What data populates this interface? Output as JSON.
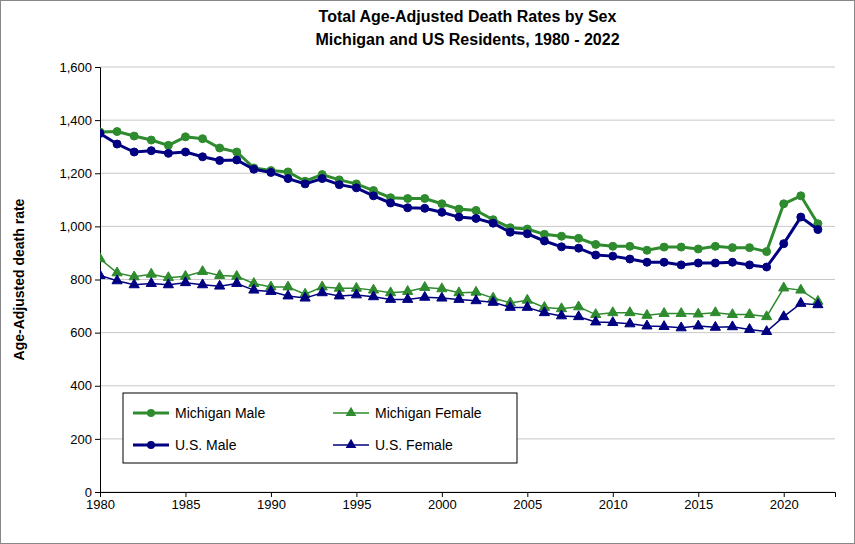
{
  "chart_data": {
    "type": "line",
    "title": "Total Age-Adjusted Death Rates by Sex",
    "subtitle": "Michigan and US Residents, 1980 - 2022",
    "y_label": "Age-Adjusted death rate",
    "x": [
      1980,
      1981,
      1982,
      1983,
      1984,
      1985,
      1986,
      1987,
      1988,
      1989,
      1990,
      1991,
      1992,
      1993,
      1994,
      1995,
      1996,
      1997,
      1998,
      1999,
      2000,
      2001,
      2002,
      2003,
      2004,
      2005,
      2006,
      2007,
      2008,
      2009,
      2010,
      2011,
      2012,
      2013,
      2014,
      2015,
      2016,
      2017,
      2018,
      2019,
      2020,
      2021,
      2022
    ],
    "xlim": [
      1980,
      2023
    ],
    "xticks": [
      1980,
      1985,
      1990,
      1995,
      2000,
      2005,
      2010,
      2015,
      2020
    ],
    "ylim": [
      0,
      1600
    ],
    "yticks": [
      0,
      200,
      400,
      600,
      800,
      {
        "value": 1000,
        "label": "1,000"
      },
      {
        "value": 1200,
        "label": "1,200"
      },
      {
        "value": 1400,
        "label": "1,400"
      },
      {
        "value": 1600,
        "label": "1,600"
      }
    ],
    "grid": true,
    "legend": "lower left",
    "series": [
      {
        "name": "Michigan Male",
        "color": "#2e8b2e",
        "marker": "circle",
        "line_style": "solid",
        "values": [
          1355,
          1357,
          1340,
          1325,
          1305,
          1337,
          1330,
          1295,
          1280,
          1220,
          1210,
          1205,
          1170,
          1195,
          1175,
          1160,
          1135,
          1108,
          1105,
          1105,
          1085,
          1065,
          1060,
          1025,
          995,
          990,
          970,
          963,
          955,
          932,
          925,
          925,
          910,
          922,
          922,
          915,
          925,
          920,
          920,
          905,
          1085,
          1115,
          1010
        ]
      },
      {
        "name": "Michigan Female",
        "color": "#2e8b2e",
        "marker": "triangle",
        "line_style": "solid",
        "values": [
          878,
          825,
          810,
          820,
          807,
          812,
          830,
          815,
          812,
          785,
          772,
          772,
          745,
          772,
          767,
          767,
          760,
          750,
          755,
          770,
          765,
          750,
          752,
          730,
          712,
          722,
          695,
          690,
          697,
          668,
          675,
          675,
          665,
          672,
          672,
          670,
          675,
          668,
          668,
          660,
          768,
          760,
          718
        ]
      },
      {
        "name": "U.S. Male",
        "color": "#000080",
        "marker": "circle",
        "line_style": "solid",
        "values": [
          1350,
          1310,
          1280,
          1285,
          1275,
          1280,
          1262,
          1248,
          1250,
          1215,
          1203,
          1180,
          1160,
          1180,
          1157,
          1145,
          1115,
          1088,
          1070,
          1068,
          1053,
          1035,
          1030,
          1012,
          978,
          972,
          945,
          923,
          918,
          892,
          888,
          877,
          865,
          865,
          855,
          862,
          862,
          865,
          855,
          847,
          935,
          1035,
          988
        ]
      },
      {
        "name": "U.S. Female",
        "color": "#000080",
        "marker": "triangle",
        "line_style": "solid",
        "values": [
          815,
          795,
          780,
          785,
          780,
          788,
          780,
          775,
          785,
          760,
          755,
          738,
          730,
          750,
          738,
          742,
          735,
          725,
          725,
          733,
          730,
          725,
          720,
          714,
          695,
          695,
          675,
          663,
          660,
          640,
          638,
          633,
          625,
          623,
          618,
          625,
          620,
          622,
          612,
          604,
          660,
          710,
          705
        ]
      }
    ]
  }
}
